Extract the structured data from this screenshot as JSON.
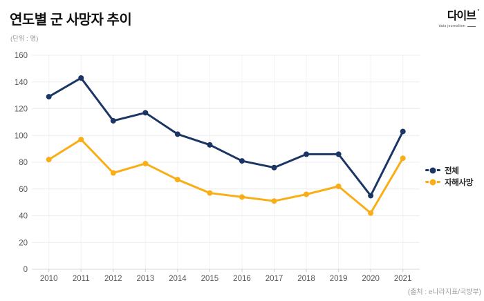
{
  "header": {
    "title": "연도별 군 사망자 추이",
    "unit": "(단위 : 명)"
  },
  "logo": {
    "text": "다이브",
    "subtext": "data journalism"
  },
  "source": "(출처 : e나라지표/국방부)",
  "colors": {
    "total": "#1b3564",
    "suicide": "#f9ae17",
    "grid_h": "#ececec",
    "grid_v": "#f3f3f3",
    "axis": "#d9d9d9",
    "tick": "#cccccc",
    "axis_label": "#555555",
    "title": "#111111",
    "legend_text": "#222222"
  },
  "chart_data": {
    "type": "line",
    "title": "연도별 군 사망자 추이",
    "unit_label": "(단위 : 명)",
    "categories": [
      "2010",
      "2011",
      "2012",
      "2013",
      "2014",
      "2015",
      "2016",
      "2017",
      "2018",
      "2019",
      "2020",
      "2021"
    ],
    "series": [
      {
        "name": "전체",
        "color": "#1b3564",
        "values": [
          129,
          143,
          111,
          117,
          101,
          93,
          81,
          76,
          86,
          86,
          55,
          103
        ]
      },
      {
        "name": "자해사망",
        "color": "#f9ae17",
        "values": [
          82,
          97,
          72,
          79,
          67,
          57,
          54,
          51,
          56,
          62,
          42,
          83
        ]
      }
    ],
    "xlabel": "",
    "ylabel": "",
    "ylim": [
      0,
      160
    ],
    "ytick_step": 20,
    "grid": true,
    "legend_position": "right",
    "source": "(출처 : e나라지표/국방부)"
  }
}
